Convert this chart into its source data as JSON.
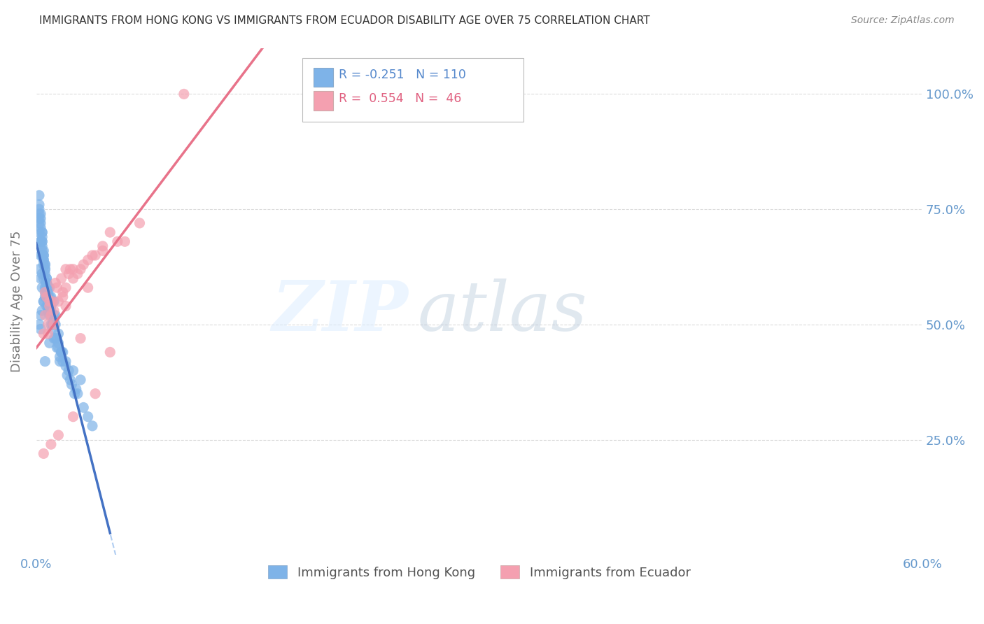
{
  "title": "IMMIGRANTS FROM HONG KONG VS IMMIGRANTS FROM ECUADOR DISABILITY AGE OVER 75 CORRELATION CHART",
  "source": "Source: ZipAtlas.com",
  "ylabel": "Disability Age Over 75",
  "legend_label1": "Immigrants from Hong Kong",
  "legend_label2": "Immigrants from Ecuador",
  "legend_R1": "R = -0.251",
  "legend_N1": "N = 110",
  "legend_R2": "R =  0.554",
  "legend_N2": "N =  46",
  "color_hk": "#7EB3E8",
  "color_ec": "#F4A0B0",
  "color_hk_line": "#4472C4",
  "color_ec_line": "#E8738A",
  "color_hk_dashed": "#A8C8F0",
  "bg_color": "#FFFFFF",
  "grid_color": "#CCCCCC",
  "title_color": "#333333",
  "axis_label_color": "#6699CC",
  "hk_x": [
    0.2,
    0.5,
    0.3,
    0.7,
    0.4,
    1.0,
    0.8,
    0.6,
    1.2,
    1.5,
    0.9,
    1.1,
    1.3,
    1.7,
    2.0,
    2.5,
    3.0,
    0.3,
    0.2,
    0.4,
    0.5,
    0.8,
    1.0,
    1.2,
    0.6,
    0.7,
    0.9,
    1.4,
    1.6,
    2.0,
    2.8,
    3.5,
    0.3,
    0.5,
    0.6,
    0.8,
    0.4,
    0.7,
    1.1,
    1.5,
    2.2,
    2.7,
    3.2,
    0.2,
    0.4,
    0.3,
    0.6,
    0.9,
    1.0,
    1.3,
    1.8,
    2.3,
    3.8,
    0.2,
    0.4,
    0.5,
    0.7,
    1.0,
    1.4,
    2.1,
    0.3,
    0.6,
    0.8,
    1.2,
    1.7,
    2.4,
    0.2,
    0.4,
    0.5,
    0.9,
    1.6,
    0.3,
    0.6,
    0.8,
    1.2,
    0.2,
    0.4,
    0.7,
    0.5,
    0.3,
    0.6,
    0.4,
    0.8,
    1.0,
    0.3,
    0.5,
    0.2,
    0.4,
    0.6,
    0.7,
    0.9,
    1.1,
    1.3,
    1.8,
    2.6,
    0.3,
    0.5,
    0.2,
    0.7,
    0.4,
    1.0,
    1.5,
    0.6,
    0.8,
    1.2,
    0.3,
    0.2,
    0.4,
    0.5,
    0.7
  ],
  "hk_y": [
    50,
    55,
    52,
    58,
    53,
    56,
    54,
    57,
    51,
    48,
    46,
    49,
    52,
    44,
    42,
    40,
    38,
    60,
    62,
    58,
    55,
    53,
    50,
    47,
    56,
    54,
    52,
    45,
    43,
    41,
    35,
    30,
    65,
    60,
    58,
    54,
    61,
    56,
    50,
    45,
    40,
    36,
    32,
    70,
    65,
    68,
    62,
    58,
    55,
    50,
    44,
    38,
    28,
    72,
    66,
    63,
    59,
    54,
    47,
    39,
    68,
    61,
    57,
    52,
    44,
    37,
    74,
    67,
    64,
    56,
    42,
    71,
    63,
    58,
    50,
    75,
    68,
    60,
    65,
    73,
    62,
    69,
    56,
    52,
    74,
    66,
    76,
    70,
    63,
    60,
    55,
    50,
    47,
    42,
    35,
    72,
    65,
    78,
    59,
    68,
    53,
    46,
    42,
    58,
    55,
    49,
    73,
    70,
    64,
    59
  ],
  "ec_x": [
    0.5,
    1.0,
    1.5,
    2.0,
    2.5,
    3.0,
    4.0,
    5.0,
    7.0,
    10.0,
    0.8,
    1.2,
    1.8,
    2.8,
    4.5,
    6.0,
    0.6,
    1.1,
    1.7,
    2.3,
    3.5,
    5.5,
    0.9,
    1.4,
    2.2,
    3.8,
    0.7,
    1.3,
    2.0,
    3.2,
    0.5,
    1.0,
    1.5,
    2.5,
    4.0,
    0.8,
    1.2,
    2.0,
    3.5,
    0.6,
    1.8,
    3.0,
    5.0,
    0.9,
    2.5,
    4.5
  ],
  "ec_y": [
    48,
    52,
    55,
    58,
    60,
    62,
    65,
    70,
    72,
    100,
    50,
    53,
    56,
    61,
    66,
    68,
    57,
    55,
    60,
    62,
    64,
    68,
    54,
    58,
    61,
    65,
    56,
    59,
    62,
    63,
    22,
    24,
    26,
    30,
    35,
    48,
    50,
    54,
    58,
    52,
    57,
    47,
    44,
    55,
    62,
    67
  ]
}
